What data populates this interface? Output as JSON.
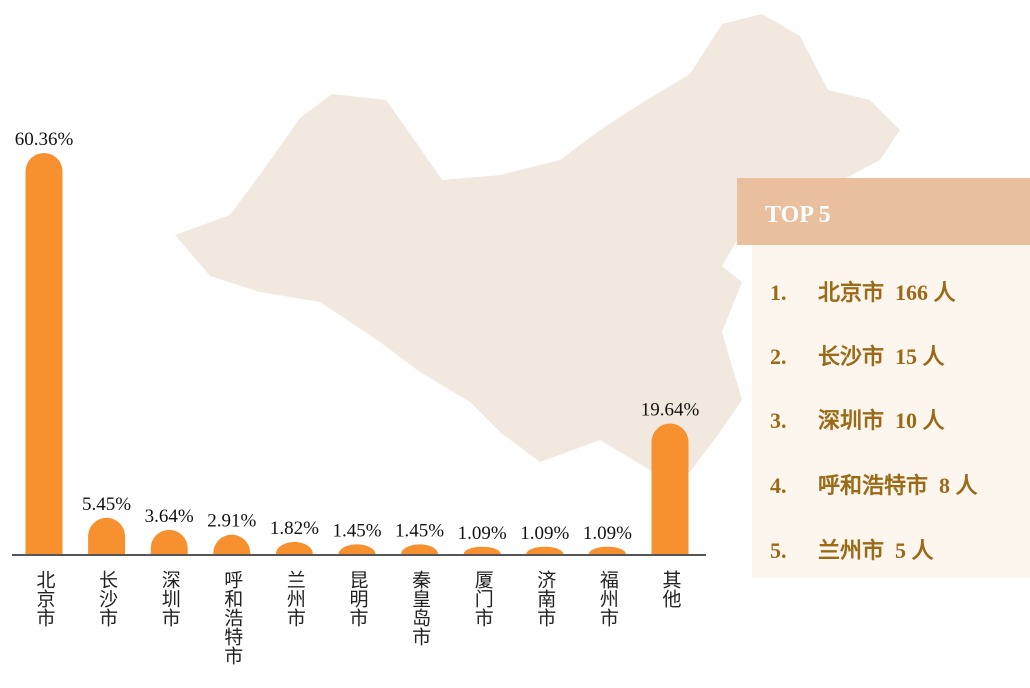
{
  "chart_data": {
    "type": "bar",
    "categories": [
      "北京市",
      "长沙市",
      "深圳市",
      "呼和浩特市",
      "兰州市",
      "昆明市",
      "秦皇岛市",
      "厦门市",
      "济南市",
      "福州市",
      "其他"
    ],
    "values": [
      60.36,
      5.45,
      3.64,
      2.91,
      1.82,
      1.45,
      1.45,
      1.09,
      1.09,
      1.09,
      19.64
    ],
    "value_labels": [
      "60.36%",
      "5.45%",
      "3.64%",
      "2.91%",
      "1.82%",
      "1.45%",
      "1.45%",
      "1.09%",
      "1.09%",
      "1.09%",
      "19.64%"
    ],
    "color": "#f7902e"
  },
  "top5": {
    "title": "TOP 5",
    "items": [
      {
        "rank": "1.",
        "text": "北京市  166 人"
      },
      {
        "rank": "2.",
        "text": "长沙市  15 人"
      },
      {
        "rank": "3.",
        "text": "深圳市  10 人"
      },
      {
        "rank": "4.",
        "text": "呼和浩特市  8 人"
      },
      {
        "rank": "5.",
        "text": "兰州市  5 人"
      }
    ]
  }
}
